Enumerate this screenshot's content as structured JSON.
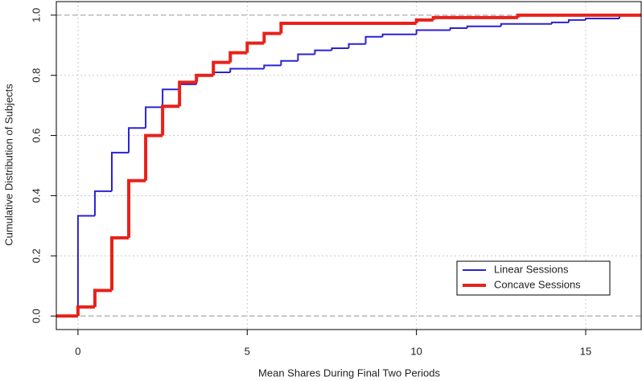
{
  "chart_data": {
    "type": "step",
    "x_label": "Mean Shares During Final Two Periods",
    "y_label": "Cumulative Distribution of Subjects",
    "xlim": [
      -0.64,
      16.64
    ],
    "ylim": [
      -0.045,
      1.045
    ],
    "xticks": [
      0,
      5,
      10,
      15
    ],
    "yticks": [
      {
        "value": 0,
        "label": "0.0"
      },
      0.2,
      0.4,
      0.6,
      0.8,
      {
        "value": 1,
        "label": "1.0"
      }
    ],
    "grid": true,
    "legend": "bottom-right",
    "series": [
      {
        "name": "Linear Sessions",
        "color": "#2b22d4",
        "x": [
          0,
          0.5,
          1,
          1.5,
          2,
          2.5,
          3,
          3.5,
          4,
          4.5,
          5.5,
          6,
          6.5,
          7,
          7.5,
          8,
          8.5,
          9,
          10,
          11,
          11.5,
          12.5,
          14,
          14.5,
          15,
          16
        ],
        "values": [
          0.333,
          0.415,
          0.543,
          0.625,
          0.694,
          0.753,
          0.77,
          0.8,
          0.81,
          0.822,
          0.833,
          0.848,
          0.87,
          0.883,
          0.89,
          0.904,
          0.928,
          0.936,
          0.95,
          0.957,
          0.963,
          0.971,
          0.976,
          0.984,
          0.989,
          1
        ]
      },
      {
        "name": "Concave Sessions",
        "color": "#e8211a",
        "x": [
          0,
          0.5,
          1,
          1.5,
          2,
          2.5,
          3,
          3.5,
          4,
          4.5,
          5,
          5.5,
          6,
          10,
          10.5,
          13
        ],
        "values": [
          0.03,
          0.085,
          0.26,
          0.45,
          0.6,
          0.697,
          0.777,
          0.8,
          0.843,
          0.875,
          0.907,
          0.939,
          0.973,
          0.984,
          0.992,
          1
        ]
      }
    ]
  }
}
